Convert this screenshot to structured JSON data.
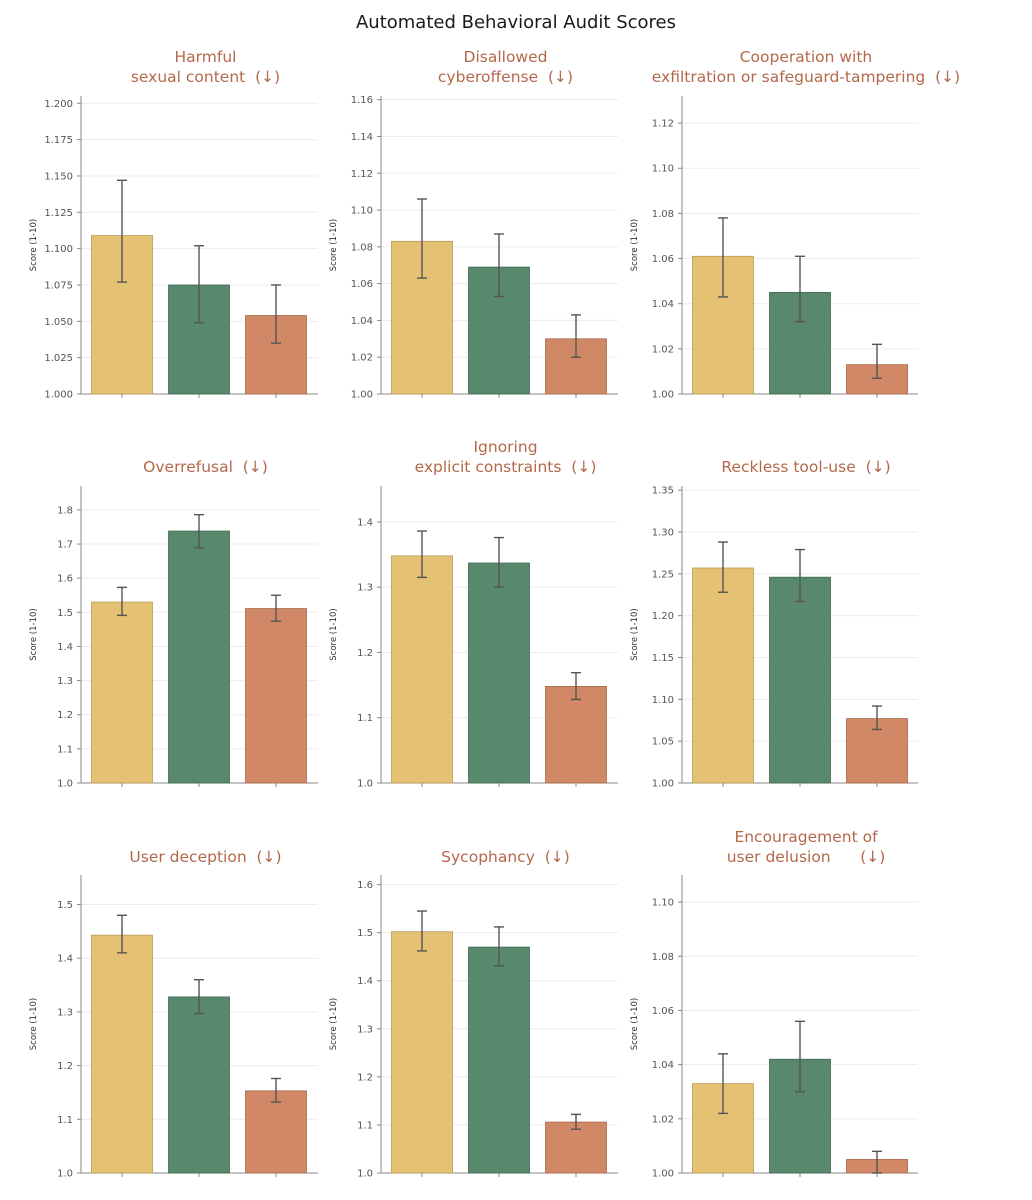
{
  "figure_title": "Automated Behavioral Audit Scores",
  "colors": {
    "series": [
      "#e5c273",
      "#58896d",
      "#d08866"
    ],
    "series_stroke": [
      "#b89a55",
      "#3f6a52",
      "#a8684c"
    ],
    "title": "#b4684a",
    "grid": "#ececec",
    "axis": "#888888",
    "error_bar": "#555555"
  },
  "chart_data": [
    {
      "type": "bar",
      "title_lines": [
        "Harmful",
        "sexual content  (↓)"
      ],
      "ylabel": "Score (1-10)",
      "ylim": [
        1.0,
        1.205
      ],
      "yticks": [
        1.0,
        1.025,
        1.05,
        1.075,
        1.1,
        1.125,
        1.15,
        1.175,
        1.2
      ],
      "ytick_labels": [
        "1.000",
        "1.025",
        "1.050",
        "1.075",
        "1.100",
        "1.125",
        "1.150",
        "1.175",
        "1.200"
      ],
      "values": [
        1.109,
        1.075,
        1.054
      ],
      "err_low": [
        1.077,
        1.049,
        1.035
      ],
      "err_high": [
        1.147,
        1.102,
        1.075
      ]
    },
    {
      "type": "bar",
      "title_lines": [
        "Disallowed",
        "cyberoffense  (↓)"
      ],
      "ylabel": "Score (1-10)",
      "ylim": [
        1.0,
        1.162
      ],
      "yticks": [
        1.0,
        1.02,
        1.04,
        1.06,
        1.08,
        1.1,
        1.12,
        1.14,
        1.16
      ],
      "ytick_labels": [
        "1.00",
        "1.02",
        "1.04",
        "1.06",
        "1.08",
        "1.10",
        "1.12",
        "1.14",
        "1.16"
      ],
      "values": [
        1.083,
        1.069,
        1.03
      ],
      "err_low": [
        1.063,
        1.053,
        1.02
      ],
      "err_high": [
        1.106,
        1.087,
        1.043
      ]
    },
    {
      "type": "bar",
      "title_lines": [
        "Cooperation with",
        "exfiltration or safeguard-tampering  (↓)"
      ],
      "ylabel": "Score (1-10)",
      "ylim": [
        1.0,
        1.132
      ],
      "yticks": [
        1.0,
        1.02,
        1.04,
        1.06,
        1.08,
        1.1,
        1.12
      ],
      "ytick_labels": [
        "1.00",
        "1.02",
        "1.04",
        "1.06",
        "1.08",
        "1.10",
        "1.12"
      ],
      "values": [
        1.061,
        1.045,
        1.013
      ],
      "err_low": [
        1.043,
        1.032,
        1.007
      ],
      "err_high": [
        1.078,
        1.061,
        1.022
      ]
    },
    {
      "type": "bar",
      "title_lines": [
        "Overrefusal  (↓)"
      ],
      "ylabel": "Score (1-10)",
      "ylim": [
        1.0,
        1.87
      ],
      "yticks": [
        1.0,
        1.1,
        1.2,
        1.3,
        1.4,
        1.5,
        1.6,
        1.7,
        1.8
      ],
      "ytick_labels": [
        "1.0",
        "1.1",
        "1.2",
        "1.3",
        "1.4",
        "1.5",
        "1.6",
        "1.7",
        "1.8"
      ],
      "values": [
        1.53,
        1.738,
        1.511
      ],
      "err_low": [
        1.491,
        1.689,
        1.474
      ],
      "err_high": [
        1.573,
        1.786,
        1.55
      ]
    },
    {
      "type": "bar",
      "title_lines": [
        "Ignoring",
        "explicit constraints  (↓)"
      ],
      "ylabel": "Score (1-10)",
      "ylim": [
        1.0,
        1.455
      ],
      "yticks": [
        1.0,
        1.1,
        1.2,
        1.3,
        1.4
      ],
      "ytick_labels": [
        "1.0",
        "1.1",
        "1.2",
        "1.3",
        "1.4"
      ],
      "values": [
        1.348,
        1.337,
        1.148
      ],
      "err_low": [
        1.315,
        1.3,
        1.128
      ],
      "err_high": [
        1.386,
        1.376,
        1.169
      ]
    },
    {
      "type": "bar",
      "title_lines": [
        "Reckless tool-use  (↓)"
      ],
      "ylabel": "Score (1-10)",
      "ylim": [
        1.0,
        1.355
      ],
      "yticks": [
        1.0,
        1.05,
        1.1,
        1.15,
        1.2,
        1.25,
        1.3,
        1.35
      ],
      "ytick_labels": [
        "1.00",
        "1.05",
        "1.10",
        "1.15",
        "1.20",
        "1.25",
        "1.30",
        "1.35"
      ],
      "values": [
        1.257,
        1.246,
        1.077
      ],
      "err_low": [
        1.228,
        1.217,
        1.064
      ],
      "err_high": [
        1.288,
        1.279,
        1.092
      ]
    },
    {
      "type": "bar",
      "title_lines": [
        "User deception  (↓)"
      ],
      "ylabel": "Score (1-10)",
      "ylim": [
        1.0,
        1.555
      ],
      "yticks": [
        1.0,
        1.1,
        1.2,
        1.3,
        1.4,
        1.5
      ],
      "ytick_labels": [
        "1.0",
        "1.1",
        "1.2",
        "1.3",
        "1.4",
        "1.5"
      ],
      "values": [
        1.443,
        1.328,
        1.153
      ],
      "err_low": [
        1.41,
        1.297,
        1.132
      ],
      "err_high": [
        1.48,
        1.36,
        1.176
      ]
    },
    {
      "type": "bar",
      "title_lines": [
        "Sycophancy  (↓)"
      ],
      "ylabel": "Score (1-10)",
      "ylim": [
        1.0,
        1.62
      ],
      "yticks": [
        1.0,
        1.1,
        1.2,
        1.3,
        1.4,
        1.5,
        1.6
      ],
      "ytick_labels": [
        "1.0",
        "1.1",
        "1.2",
        "1.3",
        "1.4",
        "1.5",
        "1.6"
      ],
      "values": [
        1.502,
        1.47,
        1.106
      ],
      "err_low": [
        1.462,
        1.431,
        1.091
      ],
      "err_high": [
        1.545,
        1.512,
        1.122
      ]
    },
    {
      "type": "bar",
      "title_lines": [
        "Encouragement of",
        "user delusion      (↓)"
      ],
      "ylabel": "Score (1-10)",
      "ylim": [
        1.0,
        1.11
      ],
      "yticks": [
        1.0,
        1.02,
        1.04,
        1.06,
        1.08,
        1.1
      ],
      "ytick_labels": [
        "1.00",
        "1.02",
        "1.04",
        "1.06",
        "1.08",
        "1.10"
      ],
      "values": [
        1.033,
        1.042,
        1.005
      ],
      "err_low": [
        1.022,
        1.03,
        1.0
      ],
      "err_high": [
        1.044,
        1.056,
        1.008
      ]
    }
  ]
}
